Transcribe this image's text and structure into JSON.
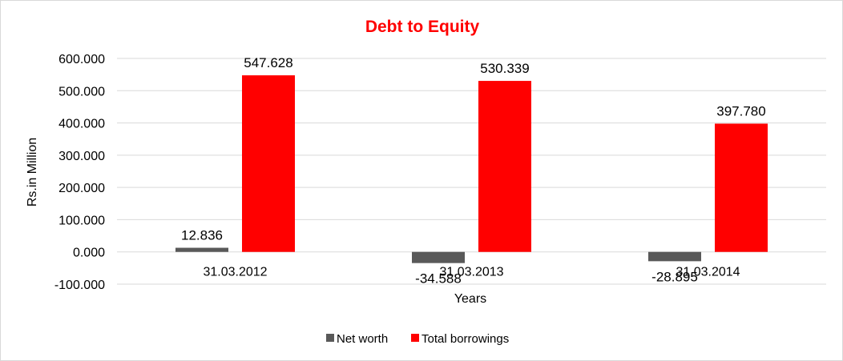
{
  "chart_data": {
    "type": "bar",
    "title": "Debt to Equity",
    "xlabel": "Years",
    "ylabel": "Rs.in Million",
    "categories": [
      "31.03.2012",
      "31.03.2013",
      "31.03.2014"
    ],
    "series": [
      {
        "name": "Net worth",
        "values": [
          12.836,
          -34.588,
          -28.895
        ],
        "labels": [
          "12.836",
          "-34.588",
          "-28.895"
        ],
        "color": "#595959"
      },
      {
        "name": "Total borrowings",
        "values": [
          547.628,
          530.339,
          397.78
        ],
        "labels": [
          "547.628",
          "530.339",
          "397.780"
        ],
        "color": "#ff0000"
      }
    ],
    "ylim": [
      -100,
      600
    ],
    "yticks": [
      600,
      500,
      400,
      300,
      200,
      100,
      0,
      -100
    ],
    "ytick_labels": [
      "600.000",
      "500.000",
      "400.000",
      "300.000",
      "200.000",
      "100.000",
      "0.000",
      "-100.000"
    ],
    "grid": true,
    "legend_position": "bottom",
    "title_color": "#ff0000"
  }
}
